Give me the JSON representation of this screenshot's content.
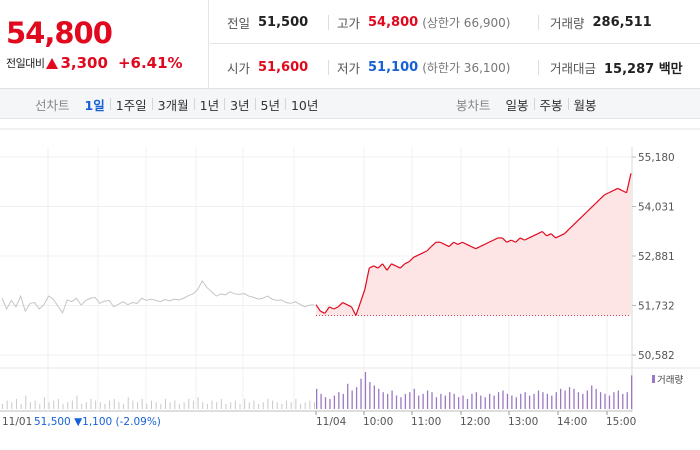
{
  "quote": {
    "current_price": "54,800",
    "change_label": "전일대비",
    "change_value": "3,300",
    "change_rate": "+6.41%",
    "prev_close_label": "전일",
    "prev_close": "51,500",
    "high_label": "고가",
    "high": "54,800",
    "upper_limit": "(상한가 66,900)",
    "volume_label": "거래량",
    "volume": "286,511",
    "open_label": "시가",
    "open": "51,600",
    "low_label": "저가",
    "low": "51,100",
    "lower_limit": "(하한가 36,100)",
    "amount_label": "거래대금",
    "amount": "15,287 백만"
  },
  "toolbar": {
    "line_label": "선차트",
    "line_periods": [
      "1일",
      "1주일",
      "3개월",
      "1년",
      "3년",
      "5년",
      "10년"
    ],
    "active_period": "1일",
    "candle_label": "봉차트",
    "candle_periods": [
      "일봉",
      "주봉",
      "월봉"
    ]
  },
  "chart_data": {
    "type": "line",
    "y_ticks": [
      "55,180",
      "54,031",
      "52,881",
      "51,732",
      "50,582"
    ],
    "y_range": [
      50582,
      55180
    ],
    "prev_day_label": "11/01",
    "prev_day_info": "51,500 ▼1,100 (-2.09%)",
    "x_ticks": [
      "11/04",
      "10:00",
      "11:00",
      "12:00",
      "13:00",
      "14:00",
      "15:00"
    ],
    "legend": "거래량",
    "reference_line": 51500,
    "series": [
      {
        "session": "previous-day",
        "values": [
          51900,
          51650,
          51850,
          51700,
          51950,
          51600,
          51780,
          51800,
          51650,
          51750,
          51950,
          51880,
          51720,
          51560,
          51860,
          51820,
          51900,
          51740,
          51850,
          51900,
          51920,
          51780,
          51830,
          51850,
          51700,
          51760,
          51820,
          51750,
          51800,
          51780,
          51900,
          51850,
          51880,
          51850,
          51820,
          51870,
          51840,
          51880,
          51860,
          51900,
          51960,
          52000,
          52100,
          52300,
          52150,
          52050,
          51950,
          52000,
          51980,
          52050,
          52000,
          51990,
          52010,
          51950,
          51920,
          51880,
          51900,
          51950,
          51880,
          51850,
          51860,
          51800,
          51780,
          51820,
          51760,
          51700,
          51740,
          51750
        ]
      },
      {
        "session": "today",
        "values": [
          51750,
          51600,
          51550,
          51700,
          51650,
          51700,
          51800,
          51750,
          51700,
          51500,
          51800,
          52100,
          52600,
          52650,
          52600,
          52700,
          52550,
          52700,
          52650,
          52600,
          52700,
          52750,
          52850,
          52900,
          52950,
          53000,
          53100,
          53200,
          53200,
          53150,
          53100,
          53200,
          53150,
          53200,
          53150,
          53100,
          53050,
          53100,
          53150,
          53200,
          53250,
          53300,
          53300,
          53200,
          53250,
          53200,
          53300,
          53250,
          53300,
          53350,
          53400,
          53450,
          53350,
          53400,
          53300,
          53350,
          53400,
          53500,
          53600,
          53700,
          53800,
          53900,
          54000,
          54100,
          54200,
          54300,
          54350,
          54400,
          54450,
          54400,
          54350,
          54800
        ]
      }
    ],
    "volume": {
      "previous_day": [
        3,
        5,
        4,
        6,
        3,
        8,
        4,
        5,
        3,
        7,
        4,
        5,
        6,
        3,
        4,
        5,
        8,
        3,
        4,
        6,
        5,
        4,
        3,
        5,
        6,
        4,
        3,
        7,
        5,
        4,
        6,
        3,
        5,
        4,
        3,
        6,
        4,
        5,
        3,
        4,
        6,
        5,
        7,
        4,
        3,
        5,
        4,
        6,
        3,
        4,
        5,
        3,
        6,
        4,
        5,
        3,
        4,
        6,
        5,
        4,
        3,
        5,
        4,
        6,
        3,
        4,
        5,
        4
      ],
      "today": [
        12,
        9,
        7,
        6,
        8,
        10,
        9,
        15,
        11,
        13,
        18,
        22,
        16,
        14,
        12,
        10,
        9,
        11,
        8,
        7,
        9,
        10,
        12,
        8,
        9,
        11,
        10,
        7,
        9,
        8,
        10,
        9,
        7,
        8,
        6,
        9,
        10,
        8,
        7,
        9,
        8,
        10,
        11,
        9,
        8,
        7,
        9,
        10,
        8,
        9,
        11,
        10,
        9,
        8,
        10,
        12,
        11,
        13,
        12,
        10,
        9,
        11,
        14,
        12,
        10,
        9,
        8,
        10,
        11,
        9,
        10,
        20
      ]
    }
  },
  "colors": {
    "up": "#e0091e",
    "down": "#1761d4",
    "prev_line": "#c6c6c6",
    "area_fill": "#fde5e6",
    "prev_volume": "#c9c9c9",
    "today_volume": "#9b78c2"
  }
}
